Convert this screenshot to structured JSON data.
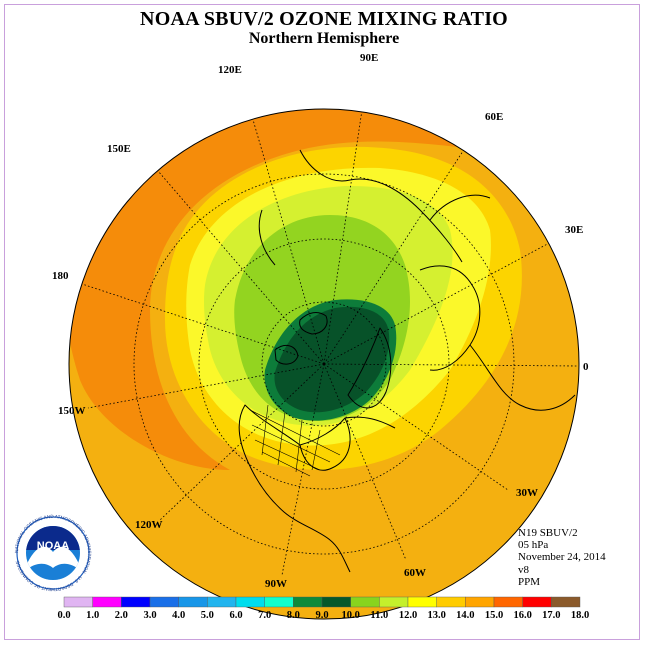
{
  "title": "NOAA SBUV/2 OZONE MIXING RATIO",
  "subtitle": "Northern Hemisphere",
  "longitude_labels": {
    "lon_90e": "90E",
    "lon_60e": "60E",
    "lon_30e": "30E",
    "lon_0": "0",
    "lon_30w": "30W",
    "lon_60w": "60W",
    "lon_90w": "90W",
    "lon_120w": "120W",
    "lon_150w": "150W",
    "lon_180": "180",
    "lon_150e": "150E",
    "lon_120e": "120E"
  },
  "info": {
    "instrument": "N19 SBUV/2",
    "level": "05 hPa",
    "date": "November 24, 2014",
    "version": "v8",
    "units": "PPM"
  },
  "colorbar": {
    "ticks": [
      "0.0",
      "1.0",
      "2.0",
      "3.0",
      "4.0",
      "5.0",
      "6.0",
      "7.0",
      "8.0",
      "9.0",
      "10.0",
      "11.0",
      "12.0",
      "13.0",
      "14.0",
      "15.0",
      "16.0",
      "17.0",
      "18.0"
    ],
    "colors": [
      "#b784e6",
      "#e0b5f2",
      "#ff00ff",
      "#0000ff",
      "#1a6fe8",
      "#1896e8",
      "#22b4ee",
      "#00ddee",
      "#11ffcc",
      "#0d8a3a",
      "#05582a",
      "#88d41e",
      "#c4f02c",
      "#ffff00",
      "#ffcc00",
      "#ffa500",
      "#ff6600",
      "#ff0000",
      "#8b5a2b"
    ]
  },
  "map_colors": {
    "background": "#f4b010",
    "outer_band": "#f58c0a",
    "band_yellow": "#fcd400",
    "band_lightyellow": "#fbf82a",
    "band_lightgreen": "#d5f030",
    "band_green": "#93d420",
    "core_green": "#0d7c3a",
    "core_darkgreen": "#075229"
  },
  "logo": {
    "text": "NOAA",
    "ring_text": "NATIONAL OCEANIC AND ATMOSPHERIC ADMINISTRATION · U.S. DEPARTMENT OF COMMERCE"
  }
}
